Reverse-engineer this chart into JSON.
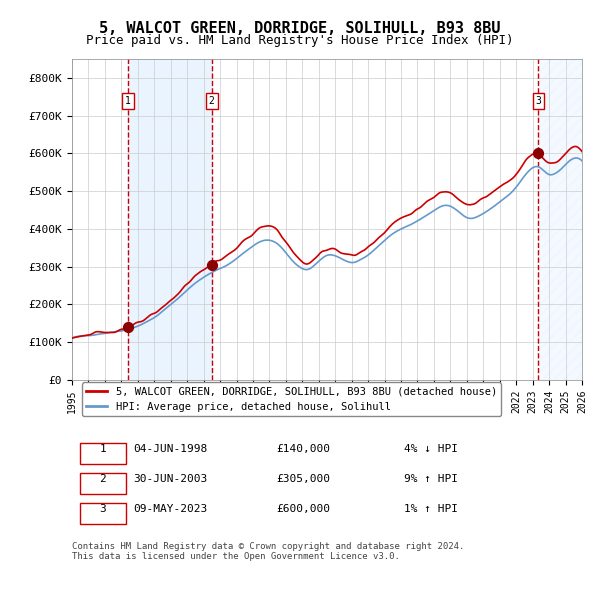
{
  "title": "5, WALCOT GREEN, DORRIDGE, SOLIHULL, B93 8BU",
  "subtitle": "Price paid vs. HM Land Registry's House Price Index (HPI)",
  "legend_line1": "5, WALCOT GREEN, DORRIDGE, SOLIHULL, B93 8BU (detached house)",
  "legend_line2": "HPI: Average price, detached house, Solihull",
  "footnote": "Contains HM Land Registry data © Crown copyright and database right 2024.\nThis data is licensed under the Open Government Licence v3.0.",
  "sale_color": "#cc0000",
  "hpi_color": "#6699cc",
  "purchase_color": "#cc0000",
  "transaction_color": "#8b0000",
  "bg_highlight_color": "#ddeeff",
  "dashed_line_color": "#cc0000",
  "grid_color": "#cccccc",
  "purchases": [
    {
      "date_num": 1998.42,
      "price": 140000,
      "label": "1",
      "date_str": "04-JUN-1998",
      "pct": "4%",
      "dir": "↓"
    },
    {
      "date_num": 2003.49,
      "price": 305000,
      "label": "2",
      "date_str": "30-JUN-2003",
      "pct": "9%",
      "dir": "↑"
    },
    {
      "date_num": 2023.35,
      "price": 600000,
      "label": "3",
      "date_str": "09-MAY-2023",
      "pct": "1%",
      "dir": "↑"
    }
  ],
  "xmin": 1995.0,
  "xmax": 2026.0,
  "ymin": 0,
  "ymax": 850000,
  "yticks": [
    0,
    100000,
    200000,
    300000,
    400000,
    500000,
    600000,
    700000,
    800000
  ],
  "ytick_labels": [
    "£0",
    "£100K",
    "£200K",
    "£300K",
    "£400K",
    "£500K",
    "£600K",
    "£700K",
    "£800K"
  ],
  "highlight_regions": [
    {
      "xstart": 1998.42,
      "xend": 2003.49
    },
    {
      "xstart": 2023.35,
      "xend": 2026.0
    }
  ]
}
